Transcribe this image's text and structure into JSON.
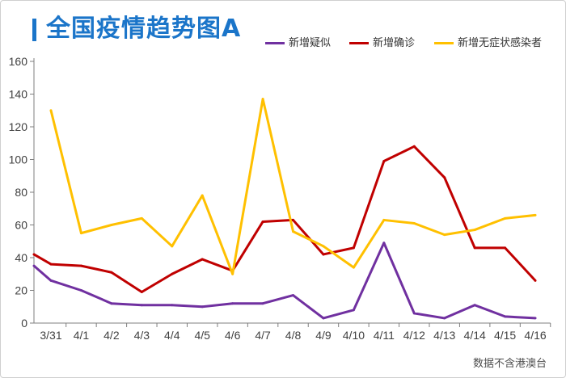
{
  "colors": {
    "title": "#1b75c9",
    "axis": "#7f7f7f"
  },
  "footer": {
    "note": "数据不含港澳台"
  },
  "chart_data": {
    "type": "line",
    "title": "全国疫情趋势图A",
    "categories": [
      "",
      "3/31",
      "4/1",
      "4/2",
      "4/3",
      "4/4",
      "4/5",
      "4/6",
      "4/7",
      "4/8",
      "4/9",
      "4/10",
      "4/11",
      "4/12",
      "4/13",
      "4/14",
      "4/15",
      "4/16"
    ],
    "ylim": [
      0,
      160
    ],
    "yticks": [
      0,
      20,
      40,
      60,
      80,
      100,
      120,
      140,
      160
    ],
    "grid": false,
    "legend": "top-right",
    "series": [
      {
        "name": "新增疑似",
        "color": "#7030a0",
        "values": [
          35,
          26,
          20,
          12,
          11,
          11,
          10,
          12,
          12,
          17,
          3,
          8,
          49,
          6,
          3,
          11,
          4,
          3
        ]
      },
      {
        "name": "新增确诊",
        "color": "#c00000",
        "values": [
          42,
          36,
          35,
          31,
          19,
          30,
          39,
          32,
          62,
          63,
          42,
          46,
          99,
          108,
          89,
          46,
          46,
          26
        ]
      },
      {
        "name": "新增无症状感染者",
        "color": "#ffc000",
        "values": [
          null,
          130,
          55,
          60,
          64,
          47,
          78,
          30,
          137,
          56,
          47,
          34,
          63,
          61,
          54,
          57,
          64,
          66
        ]
      }
    ]
  }
}
